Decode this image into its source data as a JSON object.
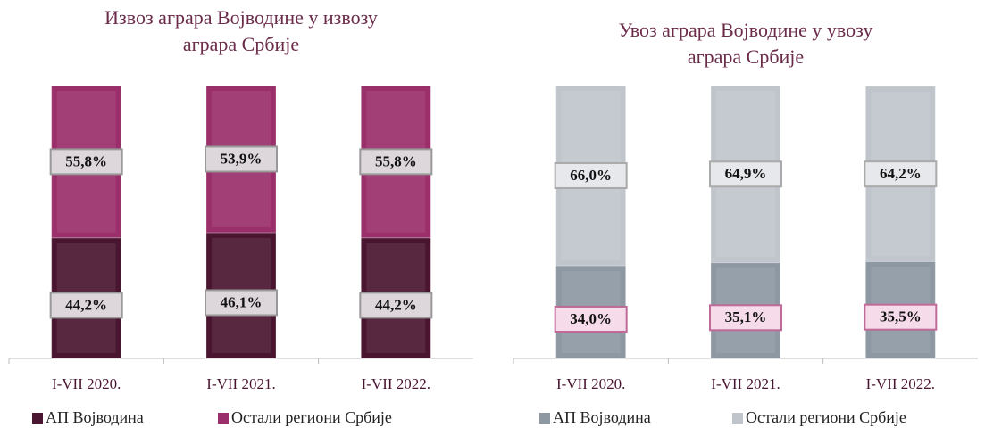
{
  "chart_data": [
    {
      "type": "bar",
      "stacked": true,
      "title": "Извоз аграра Војводине у извозу аграра Србије",
      "categories": [
        "I-VII 2020.",
        "I-VII 2021.",
        "I-VII 2022."
      ],
      "ylim": [
        0,
        100
      ],
      "series": [
        {
          "name": "АП Војводина",
          "color": "#4a1530",
          "values": [
            44.2,
            46.1,
            44.2
          ],
          "value_labels": [
            "44,2%",
            "46,1%",
            "44,2%"
          ]
        },
        {
          "name": "Остали региони Србије",
          "color": "#9b2f6b",
          "values": [
            55.8,
            53.9,
            55.8
          ],
          "value_labels": [
            "55,8%",
            "53,9%",
            "55,8%"
          ]
        }
      ]
    },
    {
      "type": "bar",
      "stacked": true,
      "title": "Увоз аграра Војводине у увозу аграра Србије",
      "categories": [
        "I-VII 2020.",
        "I-VII 2021.",
        "I-VII 2022."
      ],
      "ylim": [
        0,
        100
      ],
      "series": [
        {
          "name": "АП Војводина",
          "color": "#8e98a3",
          "values": [
            34.0,
            35.1,
            35.5
          ],
          "value_labels": [
            "34,0%",
            "35,1%",
            "35,5%"
          ]
        },
        {
          "name": "Остали региони Србије",
          "color": "#c0c5cc",
          "values": [
            66.0,
            64.9,
            64.2
          ],
          "value_labels": [
            "66,0%",
            "64,9%",
            "64,2%"
          ]
        }
      ]
    }
  ]
}
